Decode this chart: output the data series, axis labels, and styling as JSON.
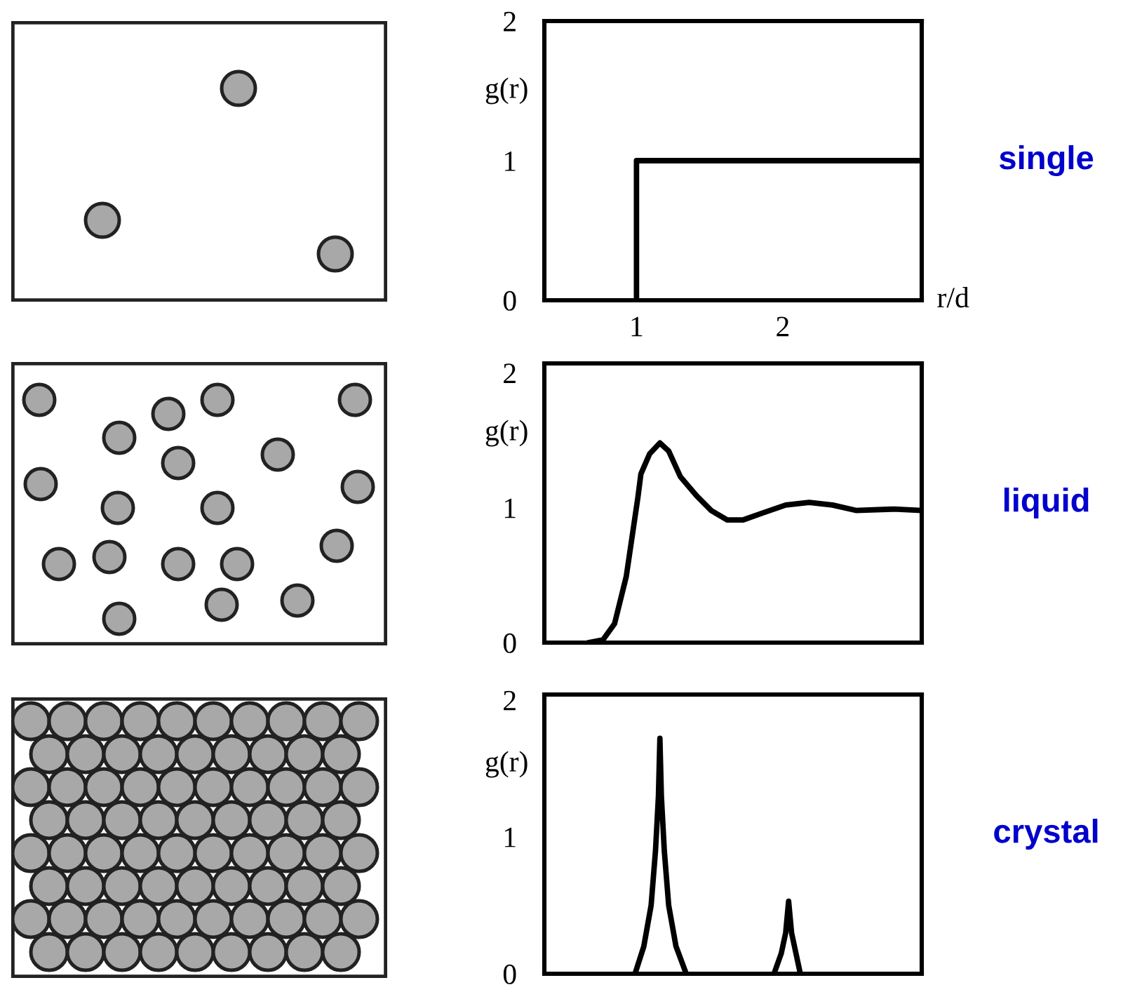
{
  "chart_data": [
    {
      "type": "line",
      "ylabel": "g(r)",
      "xlabel": "r/d",
      "annotations": [
        "single"
      ],
      "series": [
        {
          "color": "#000000",
          "x": [
            1.0,
            1.0,
            2.95
          ],
          "values": [
            0,
            1,
            1
          ]
        }
      ],
      "xlim": [
        0.37,
        2.95
      ],
      "ylim": [
        0,
        2
      ],
      "xticks": [
        1,
        2
      ],
      "yticks": [
        0,
        1,
        2
      ],
      "grid": false,
      "legend": false
    },
    {
      "type": "line",
      "ylabel": "g(r)",
      "annotations": [
        "liquid"
      ],
      "series": [
        {
          "color": "#000000",
          "x": [
            0.67,
            0.77,
            0.85,
            0.93,
            1.01,
            1.03,
            1.09,
            1.16,
            1.22,
            1.3,
            1.41,
            1.51,
            1.62,
            1.73,
            1.86,
            2.02,
            2.18,
            2.34,
            2.5,
            2.76,
            2.95
          ],
          "values": [
            0,
            0.02,
            0.14,
            0.49,
            1.08,
            1.25,
            1.4,
            1.48,
            1.42,
            1.23,
            1.09,
            0.98,
            0.91,
            0.91,
            0.96,
            1.02,
            1.04,
            1.02,
            0.98,
            0.99,
            0.98
          ]
        }
      ],
      "xlim": [
        0.37,
        2.95
      ],
      "ylim": [
        0,
        2.07
      ],
      "yticks": [
        0,
        1,
        2
      ],
      "tick_labels": "y",
      "grid": false,
      "legend": false
    },
    {
      "type": "line",
      "ylabel": "g(r)",
      "annotations": [
        "crystal"
      ],
      "series": [
        {
          "color": "#000000",
          "x": [
            0.99,
            1.05,
            1.1,
            1.13,
            1.15,
            1.16,
            1.17,
            1.19,
            1.22,
            1.27,
            1.34,
            1.6,
            1.94,
            1.99,
            2.02,
            2.04,
            2.06,
            2.09,
            2.12
          ],
          "values": [
            0,
            0.2,
            0.5,
            0.9,
            1.3,
            1.72,
            1.3,
            0.9,
            0.5,
            0.2,
            0,
            null,
            0,
            0.15,
            0.3,
            0.53,
            0.3,
            0.15,
            0
          ]
        }
      ],
      "xlim": [
        0.37,
        2.95
      ],
      "ylim": [
        0,
        2.04
      ],
      "yticks": [
        0,
        1,
        2
      ],
      "tick_labels": "y",
      "grid": false,
      "legend": false
    }
  ]
}
